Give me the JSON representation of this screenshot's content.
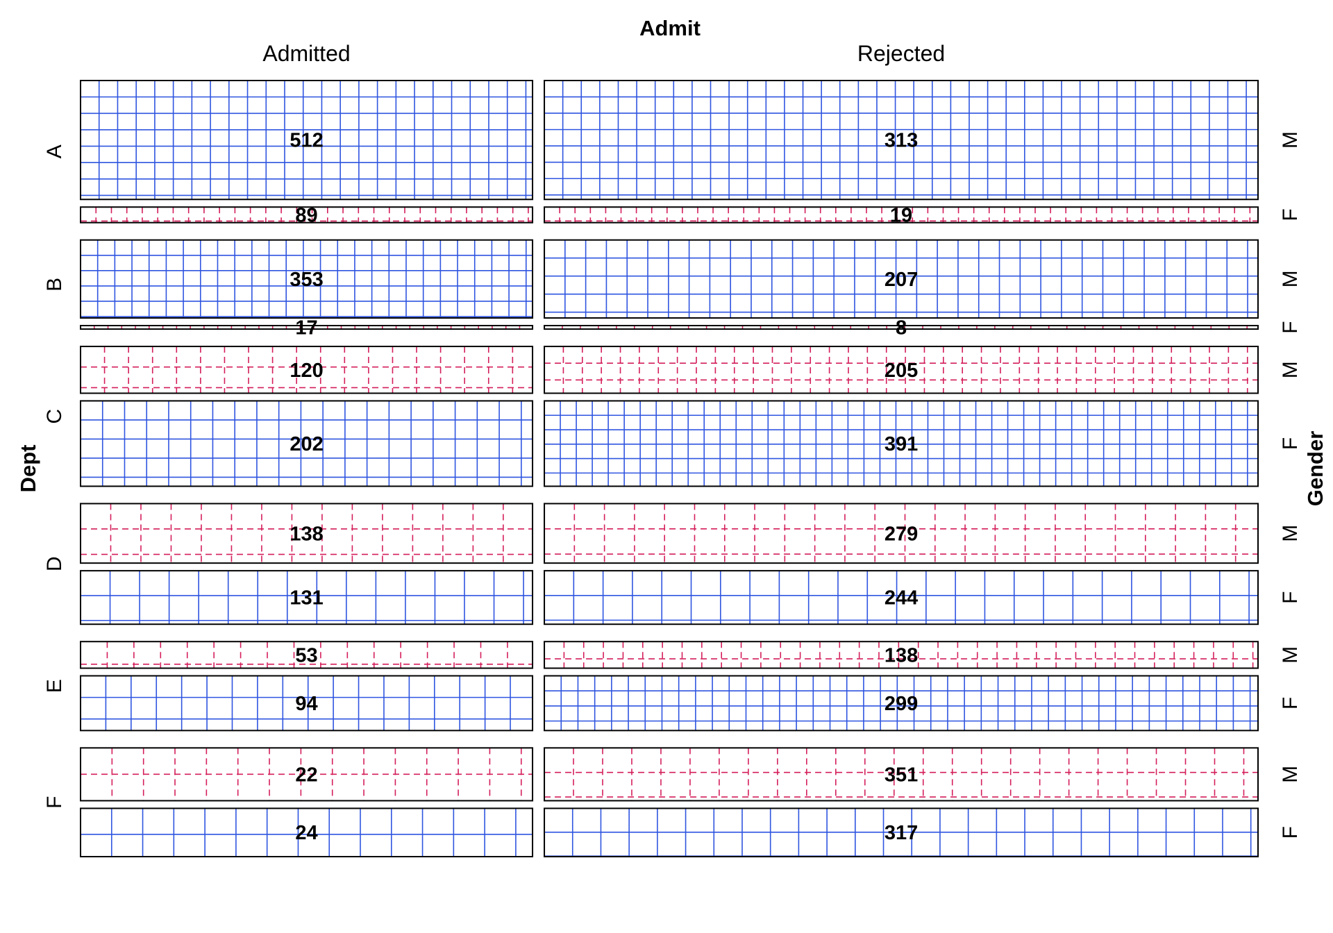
{
  "chart_data": {
    "type": "mosaic",
    "variables": {
      "top": "Admit",
      "left": "Dept",
      "right": "Gender"
    },
    "admit_levels": [
      "Admitted",
      "Rejected"
    ],
    "gender_levels": [
      "M",
      "F"
    ],
    "departments": [
      {
        "name": "A",
        "counts": {
          "Admitted": {
            "M": 512,
            "F": 89
          },
          "Rejected": {
            "M": 313,
            "F": 19
          }
        }
      },
      {
        "name": "B",
        "counts": {
          "Admitted": {
            "M": 353,
            "F": 17
          },
          "Rejected": {
            "M": 207,
            "F": 8
          }
        }
      },
      {
        "name": "C",
        "counts": {
          "Admitted": {
            "M": 120,
            "F": 202
          },
          "Rejected": {
            "M": 205,
            "F": 391
          }
        }
      },
      {
        "name": "D",
        "counts": {
          "Admitted": {
            "M": 138,
            "F": 131
          },
          "Rejected": {
            "M": 279,
            "F": 244
          }
        }
      },
      {
        "name": "E",
        "counts": {
          "Admitted": {
            "M": 53,
            "F": 94
          },
          "Rejected": {
            "M": 138,
            "F": 299
          }
        }
      },
      {
        "name": "F",
        "counts": {
          "Admitted": {
            "M": 22,
            "F": 24
          },
          "Rejected": {
            "M": 351,
            "F": 317
          }
        }
      }
    ],
    "shading": {
      "positive_color": "#2f55e0",
      "negative_color": "#d41f5a"
    }
  }
}
